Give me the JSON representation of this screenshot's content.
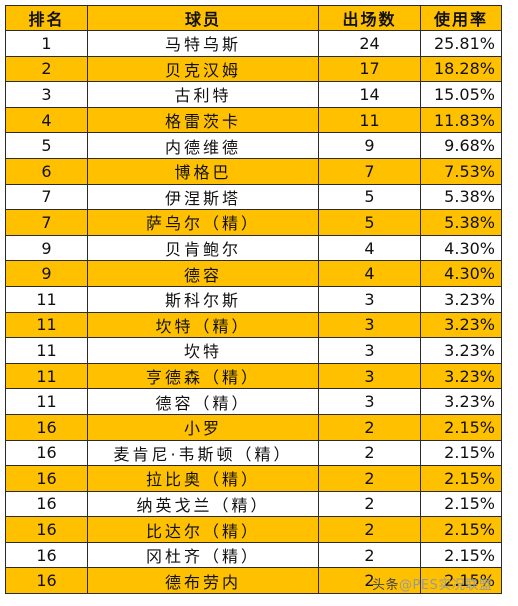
{
  "table": {
    "headers": {
      "rank": "排名",
      "player": "球员",
      "appearances": "出场数",
      "usage_rate": "使用率"
    },
    "rows": [
      {
        "rank": "1",
        "player": "马特乌斯",
        "appearances": "24",
        "usage_rate": "25.81%"
      },
      {
        "rank": "2",
        "player": "贝克汉姆",
        "appearances": "17",
        "usage_rate": "18.28%"
      },
      {
        "rank": "3",
        "player": "古利特",
        "appearances": "14",
        "usage_rate": "15.05%"
      },
      {
        "rank": "4",
        "player": "格雷茨卡",
        "appearances": "11",
        "usage_rate": "11.83%"
      },
      {
        "rank": "5",
        "player": "内德维德",
        "appearances": "9",
        "usage_rate": "9.68%"
      },
      {
        "rank": "6",
        "player": "博格巴",
        "appearances": "7",
        "usage_rate": "7.53%"
      },
      {
        "rank": "7",
        "player": "伊涅斯塔",
        "appearances": "5",
        "usage_rate": "5.38%"
      },
      {
        "rank": "7",
        "player": "萨乌尔（精）",
        "appearances": "5",
        "usage_rate": "5.38%"
      },
      {
        "rank": "9",
        "player": "贝肯鲍尔",
        "appearances": "4",
        "usage_rate": "4.30%"
      },
      {
        "rank": "9",
        "player": "德容",
        "appearances": "4",
        "usage_rate": "4.30%"
      },
      {
        "rank": "11",
        "player": "斯科尔斯",
        "appearances": "3",
        "usage_rate": "3.23%"
      },
      {
        "rank": "11",
        "player": "坎特（精）",
        "appearances": "3",
        "usage_rate": "3.23%"
      },
      {
        "rank": "11",
        "player": "坎特",
        "appearances": "3",
        "usage_rate": "3.23%"
      },
      {
        "rank": "11",
        "player": "亨德森（精）",
        "appearances": "3",
        "usage_rate": "3.23%"
      },
      {
        "rank": "11",
        "player": "德容（精）",
        "appearances": "3",
        "usage_rate": "3.23%"
      },
      {
        "rank": "16",
        "player": "小罗",
        "appearances": "2",
        "usage_rate": "2.15%"
      },
      {
        "rank": "16",
        "player": "麦肯尼·韦斯顿（精）",
        "appearances": "2",
        "usage_rate": "2.15%"
      },
      {
        "rank": "16",
        "player": "拉比奥（精）",
        "appearances": "2",
        "usage_rate": "2.15%"
      },
      {
        "rank": "16",
        "player": "纳英戈兰（精）",
        "appearances": "2",
        "usage_rate": "2.15%"
      },
      {
        "rank": "16",
        "player": "比达尔（精）",
        "appearances": "2",
        "usage_rate": "2.15%"
      },
      {
        "rank": "16",
        "player": "冈杜齐（精）",
        "appearances": "2",
        "usage_rate": "2.15%"
      },
      {
        "rank": "16",
        "player": "德布劳内",
        "appearances": "2",
        "usage_rate": "2.15%"
      }
    ]
  },
  "watermark": {
    "brand": "头条",
    "handle": "@PES实况联盟"
  },
  "colors": {
    "header_bg": "#ffc000",
    "highlight_row_bg": "#ffc000",
    "plain_row_bg": "#ffffff",
    "grid_line": "#2b2b2b"
  }
}
